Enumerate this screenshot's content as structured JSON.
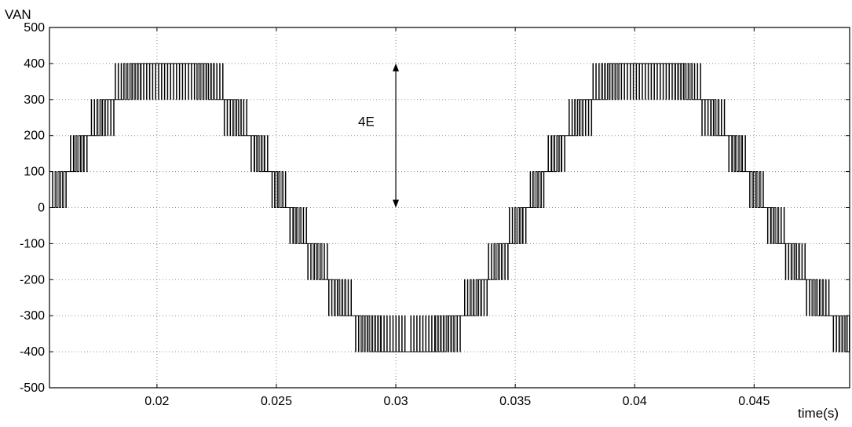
{
  "chart_data": {
    "type": "line",
    "title": "",
    "ylabel": "VAN",
    "xlabel": "time(s)",
    "xlim": [
      0.0155,
      0.049
    ],
    "ylim": [
      -500,
      500
    ],
    "x_ticks": [
      0.02,
      0.025,
      0.03,
      0.035,
      0.04,
      0.045
    ],
    "x_tick_labels": [
      "0.02",
      "0.025",
      "0.03",
      "0.035",
      "0.04",
      "0.045"
    ],
    "y_ticks": [
      500,
      400,
      300,
      200,
      100,
      0,
      -100,
      -200,
      -300,
      -400,
      -500
    ],
    "y_tick_labels": [
      "500",
      "400",
      "300",
      "200",
      "100",
      "0",
      "-100",
      "-200",
      "-300",
      "-400",
      "-500"
    ],
    "grid": true,
    "waveform": {
      "description_levels": [
        -400,
        -300,
        -200,
        -100,
        0,
        100,
        200,
        300,
        400
      ],
      "step_size": 100,
      "fundamental_frequency_hz": 50,
      "amplitude": 400,
      "phase_ref_zero_crossing_s": 0.0155
    },
    "series": [
      {
        "values_note": "PWM-switched 9-level staircase voltage",
        "color": "#000000"
      }
    ],
    "annotations": [
      {
        "text": "4E",
        "x_data": 0.03,
        "y_from": 0,
        "y_to": 400
      }
    ]
  }
}
